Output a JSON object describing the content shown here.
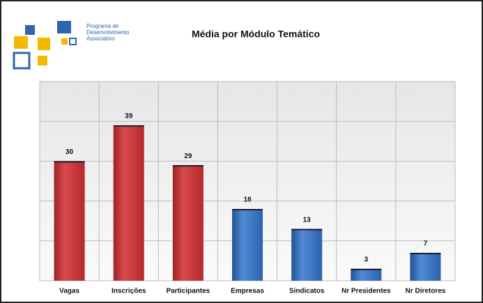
{
  "logo": [
    "Programa de",
    "Desenvolvimento",
    "Associativo"
  ],
  "chart_data": {
    "type": "bar",
    "title": "Média por Módulo Temático",
    "categories": [
      "Vagas",
      "Inscrições",
      "Participantes",
      "Empresas",
      "Sindicatos",
      "Nr Presidentes",
      "Nr Diretores"
    ],
    "values": [
      30,
      39,
      29,
      18,
      13,
      3,
      7
    ],
    "colors": [
      "#c8373a",
      "#c8373a",
      "#c8373a",
      "#3a74c6",
      "#3a74c6",
      "#3a74c6",
      "#3a74c6"
    ],
    "ylim": [
      0,
      50
    ],
    "yticks": [
      0,
      10,
      20,
      30,
      40,
      50
    ],
    "grid": true
  }
}
